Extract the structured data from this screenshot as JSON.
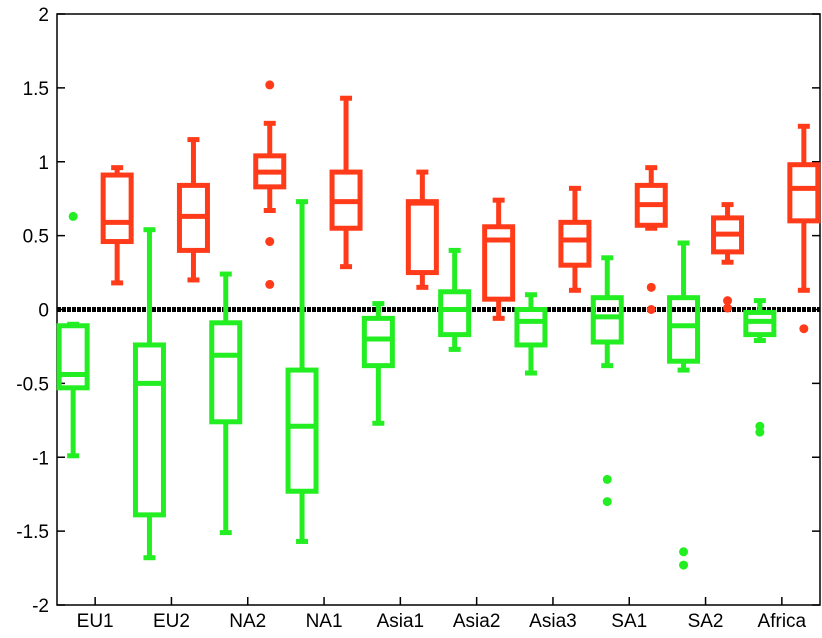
{
  "chart_data": {
    "type": "boxplot",
    "title": "",
    "xlabel": "",
    "ylabel": "",
    "ylim": [
      -2,
      2
    ],
    "yticks": [
      -2,
      -1.5,
      -1,
      -0.5,
      0,
      0.5,
      1,
      1.5,
      2
    ],
    "ytick_labels": [
      "-2",
      "-1.5",
      "-1",
      "-0.5",
      "0",
      "0.5",
      "1",
      "1.5",
      "2"
    ],
    "grid": false,
    "legend": "none",
    "reference_line": {
      "y": 0,
      "style": "dotted",
      "color": "#000000"
    },
    "categories": [
      "EU1",
      "EU2",
      "NA2",
      "NA1",
      "Asia1",
      "Asia2",
      "Asia3",
      "SA1",
      "SA2",
      "Africa"
    ],
    "series": [
      {
        "color": "#22ee22",
        "boxes": [
          {
            "whisker_low": -0.99,
            "q1": -0.53,
            "median": -0.44,
            "q3": -0.11,
            "whisker_high": -0.1,
            "outliers": [
              0.63
            ]
          },
          {
            "whisker_low": -1.68,
            "q1": -1.39,
            "median": -0.5,
            "q3": -0.24,
            "whisker_high": 0.54,
            "outliers": []
          },
          {
            "whisker_low": -1.51,
            "q1": -0.76,
            "median": -0.31,
            "q3": -0.09,
            "whisker_high": 0.24,
            "outliers": []
          },
          {
            "whisker_low": -1.57,
            "q1": -1.23,
            "median": -0.79,
            "q3": -0.41,
            "whisker_high": 0.73,
            "outliers": []
          },
          {
            "whisker_low": -0.77,
            "q1": -0.38,
            "median": -0.2,
            "q3": -0.06,
            "whisker_high": 0.04,
            "outliers": []
          },
          {
            "whisker_low": -0.27,
            "q1": -0.17,
            "median": 0.0,
            "q3": 0.12,
            "whisker_high": 0.4,
            "outliers": []
          },
          {
            "whisker_low": -0.43,
            "q1": -0.24,
            "median": -0.08,
            "q3": 0.0,
            "whisker_high": 0.1,
            "outliers": []
          },
          {
            "whisker_low": -0.38,
            "q1": -0.22,
            "median": -0.05,
            "q3": 0.08,
            "whisker_high": 0.35,
            "outliers": [
              -1.15,
              -1.3
            ]
          },
          {
            "whisker_low": -0.41,
            "q1": -0.35,
            "median": -0.11,
            "q3": 0.08,
            "whisker_high": 0.45,
            "outliers": [
              -1.64,
              -1.73
            ]
          },
          {
            "whisker_low": -0.21,
            "q1": -0.17,
            "median": -0.08,
            "q3": -0.02,
            "whisker_high": 0.06,
            "outliers": [
              -0.79,
              -0.83
            ]
          }
        ]
      },
      {
        "color": "#ff3b1a",
        "boxes": [
          {
            "whisker_low": 0.18,
            "q1": 0.46,
            "median": 0.59,
            "q3": 0.91,
            "whisker_high": 0.96,
            "outliers": []
          },
          {
            "whisker_low": 0.2,
            "q1": 0.4,
            "median": 0.63,
            "q3": 0.84,
            "whisker_high": 1.15,
            "outliers": []
          },
          {
            "whisker_low": 0.67,
            "q1": 0.83,
            "median": 0.93,
            "q3": 1.04,
            "whisker_high": 1.26,
            "outliers": [
              1.52,
              0.46,
              0.17
            ]
          },
          {
            "whisker_low": 0.29,
            "q1": 0.55,
            "median": 0.73,
            "q3": 0.93,
            "whisker_high": 1.43,
            "outliers": []
          },
          {
            "whisker_low": 0.15,
            "q1": 0.25,
            "median": 0.72,
            "q3": 0.73,
            "whisker_high": 0.93,
            "outliers": []
          },
          {
            "whisker_low": -0.06,
            "q1": 0.07,
            "median": 0.47,
            "q3": 0.56,
            "whisker_high": 0.74,
            "outliers": []
          },
          {
            "whisker_low": 0.13,
            "q1": 0.3,
            "median": 0.47,
            "q3": 0.59,
            "whisker_high": 0.82,
            "outliers": []
          },
          {
            "whisker_low": 0.55,
            "q1": 0.57,
            "median": 0.71,
            "q3": 0.84,
            "whisker_high": 0.96,
            "outliers": [
              0.15,
              0.0
            ]
          },
          {
            "whisker_low": 0.32,
            "q1": 0.39,
            "median": 0.51,
            "q3": 0.62,
            "whisker_high": 0.71,
            "outliers": [
              0.06,
              0.01
            ]
          },
          {
            "whisker_low": 0.13,
            "q1": 0.6,
            "median": 0.82,
            "q3": 0.98,
            "whisker_high": 1.24,
            "outliers": [
              -0.13
            ]
          }
        ]
      }
    ]
  }
}
